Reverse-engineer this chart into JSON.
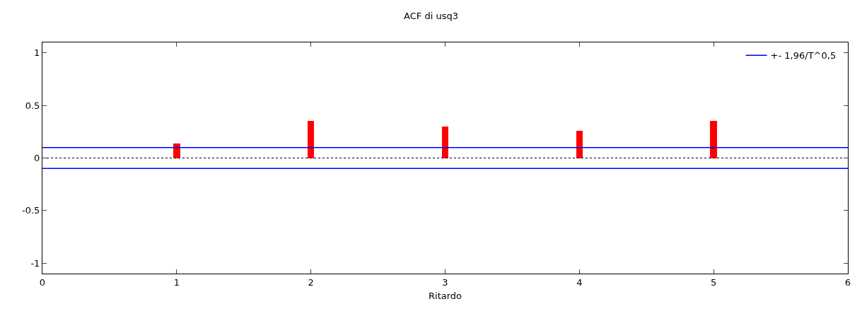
{
  "chart_data": {
    "type": "bar",
    "title": "ACF di usq3",
    "xlabel": "Ritardo",
    "x": [
      1,
      2,
      3,
      4,
      5
    ],
    "series": [
      {
        "color": "#ff0000",
        "values": [
          0.14,
          0.35,
          0.3,
          0.26,
          0.35
        ]
      }
    ],
    "xlim": [
      0,
      6
    ],
    "xticks": [
      0,
      1,
      2,
      3,
      4,
      5,
      6
    ],
    "ylim": [
      -1.1,
      1.1
    ],
    "yticks": [
      {
        "value": -1,
        "label": "-1"
      },
      {
        "value": -0.5,
        "label": "-0.5"
      },
      {
        "value": 0,
        "label": "0"
      },
      {
        "value": 0.5,
        "label": "0.5"
      },
      {
        "value": 1,
        "label": "1"
      }
    ],
    "ref_lines": [
      {
        "axis": "y",
        "value": 0.1,
        "label": "+- 1,96/T^0,5",
        "color": "#0000ff",
        "line_style": "solid"
      },
      {
        "axis": "y",
        "value": -0.1,
        "label": null,
        "color": "#0000ff",
        "line_style": "solid"
      },
      {
        "axis": "y",
        "value": 0,
        "label": null,
        "color": "#000000",
        "line_style": "dotted"
      }
    ],
    "legend": "top right"
  }
}
